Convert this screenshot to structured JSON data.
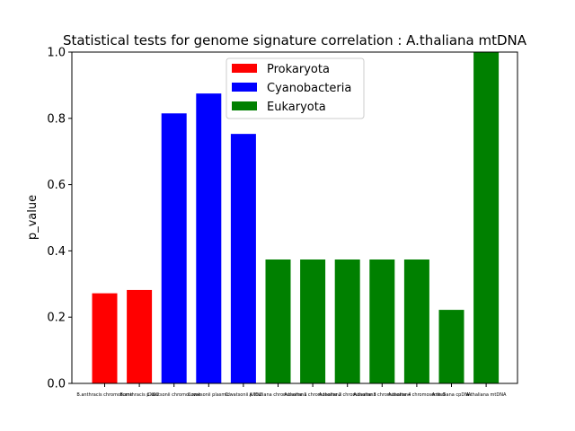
{
  "chart_data": {
    "type": "bar",
    "title": "Statistical tests for genome signature correlation : A.thaliana mtDNA",
    "xlabel": "",
    "ylabel": "p_value",
    "ylim": [
      0,
      1.0
    ],
    "yticks": [
      "0.0",
      "0.2",
      "0.4",
      "0.6",
      "0.8",
      "1.0"
    ],
    "categories": [
      "B.anthracis chromosome",
      "B.anthracis pXO1",
      "C.watsonii chromosome",
      "C.watsonii plasmid",
      "C.watsonii pXO2",
      "A.thaliana chromosome 1",
      "A.thaliana chromosome 2",
      "A.thaliana chromosome 3",
      "A.thaliana chromosome 4",
      "A.thaliana chromosome 5",
      "A.thaliana cpDNA",
      "A.thaliana mtDNA"
    ],
    "values": [
      0.272,
      0.282,
      0.815,
      0.875,
      0.753,
      0.374,
      0.374,
      0.374,
      0.374,
      0.374,
      0.222,
      1.0
    ],
    "groups": [
      "Prokaryota",
      "Prokaryota",
      "Cyanobacteria",
      "Cyanobacteria",
      "Cyanobacteria",
      "Eukaryota",
      "Eukaryota",
      "Eukaryota",
      "Eukaryota",
      "Eukaryota",
      "Eukaryota",
      "Eukaryota"
    ],
    "legend": [
      {
        "name": "Prokaryota",
        "color": "#ff0000"
      },
      {
        "name": "Cyanobacteria",
        "color": "#0000ff"
      },
      {
        "name": "Eukaryota",
        "color": "#008000"
      }
    ],
    "legend_position": "top-center",
    "grid": false
  }
}
